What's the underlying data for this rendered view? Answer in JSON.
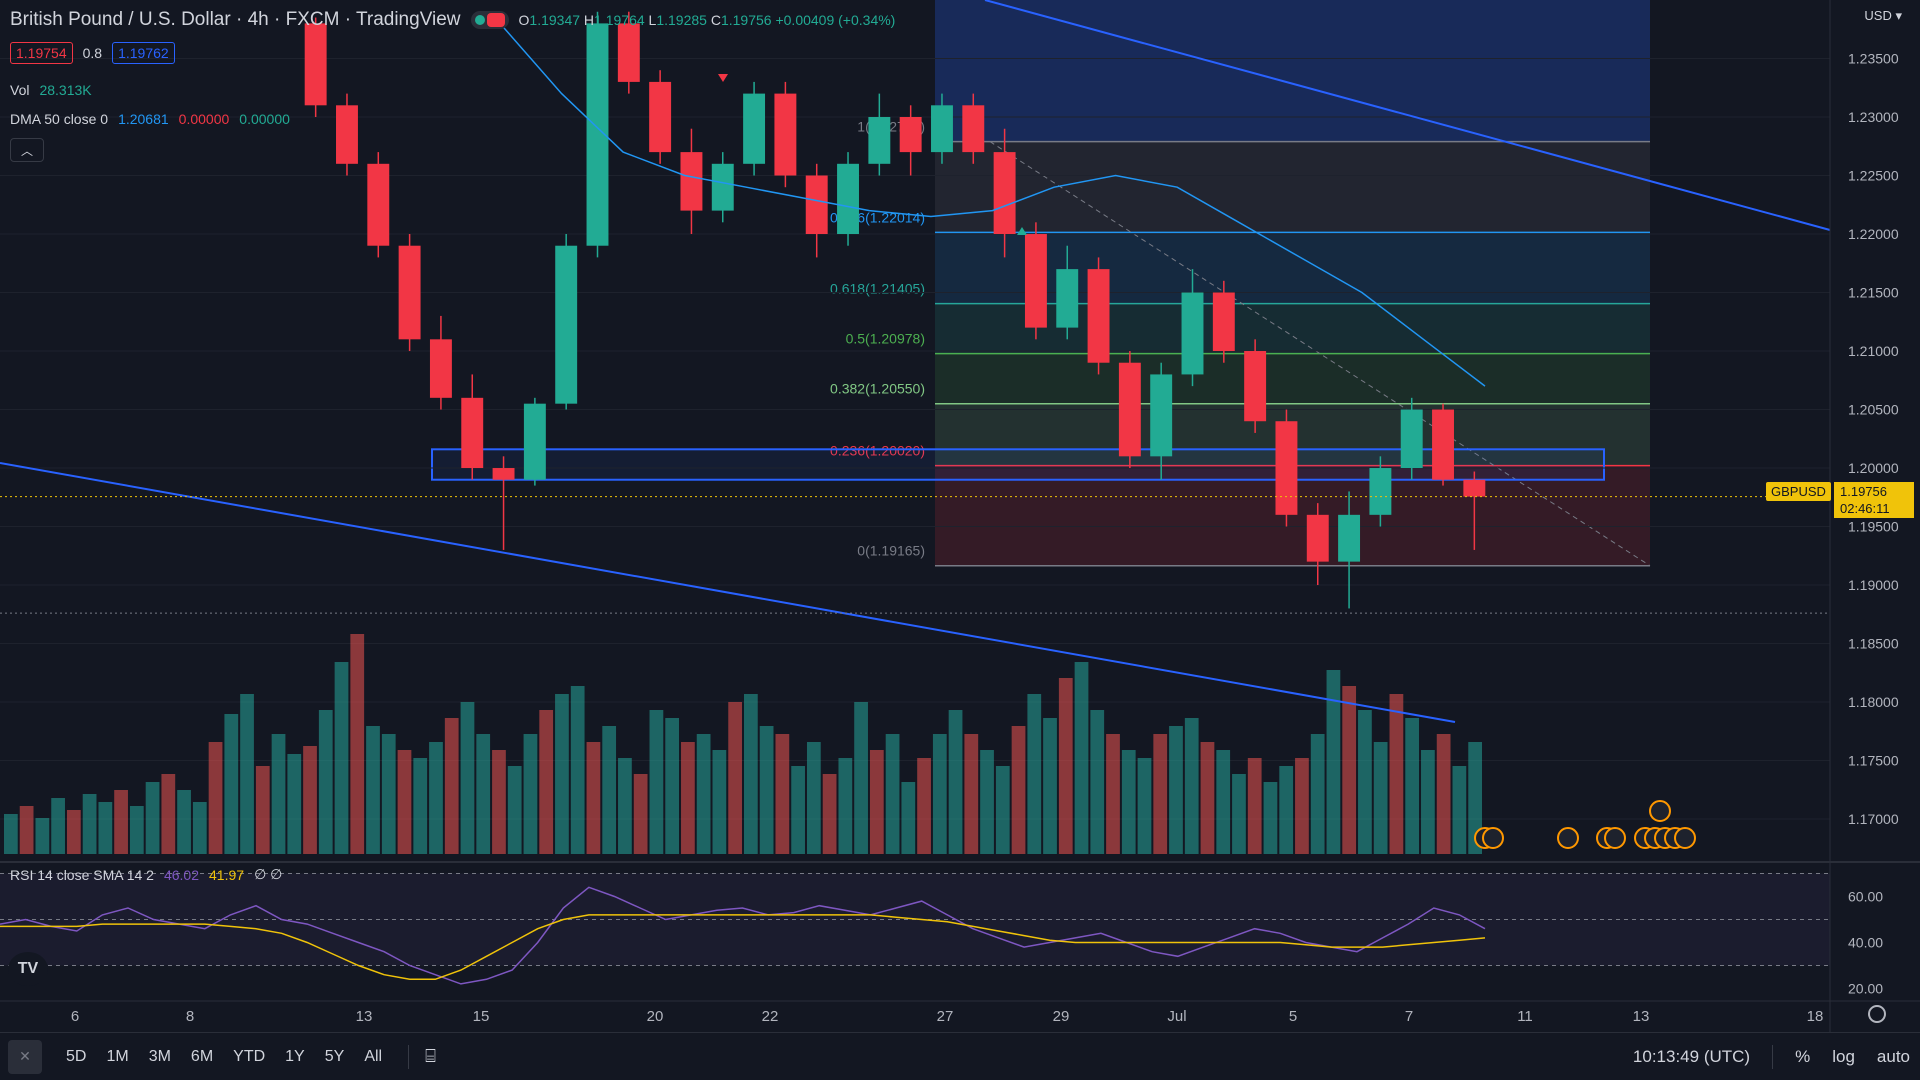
{
  "header": {
    "title": "British Pound / U.S. Dollar · 4h · FXCM · TradingView",
    "ohlc": {
      "open_label": "O",
      "open": "1.19347",
      "high_label": "H",
      "high": "1.19764",
      "low_label": "L",
      "low": "1.19285",
      "close_label": "C",
      "close": "1.19756",
      "change": "+0.00409 (+0.34%)"
    },
    "bid": "1.19754",
    "spread": "0.8",
    "ask": "1.19762"
  },
  "indicators": {
    "vol_label": "Vol",
    "vol_value": "28.313K",
    "dma_label": "DMA 50 close 0",
    "dma_value": "1.20681",
    "dma_v2": "0.00000",
    "dma_v3": "0.00000",
    "rsi_label": "RSI 14 close SMA 14 2",
    "rsi_value": "46.02",
    "rsi_sma": "41.97",
    "rsi_extra": "∅ ∅"
  },
  "price_axis": {
    "currency": "USD",
    "ticks": [
      "1.23500",
      "1.23000",
      "1.22500",
      "1.22000",
      "1.21500",
      "1.21000",
      "1.20500",
      "1.20000",
      "1.19500",
      "1.19000",
      "1.18500",
      "1.18000",
      "1.17500",
      "1.17000"
    ],
    "symbol_label": "GBPUSD",
    "last_price": "1.19756",
    "countdown": "02:46:11"
  },
  "rsi_axis": {
    "ticks": [
      "60.00",
      "40.00",
      "20.00"
    ]
  },
  "time_axis": {
    "ticks": [
      "6",
      "8",
      "13",
      "15",
      "20",
      "22",
      "27",
      "29",
      "Jul",
      "5",
      "7",
      "11",
      "13",
      "18"
    ]
  },
  "fib": {
    "levels": [
      {
        "ratio": 1,
        "label": "1(1.22790)",
        "color": "#787b86"
      },
      {
        "ratio": 0.786,
        "label": "0.786(1.22014)",
        "color": "#2196f3"
      },
      {
        "ratio": 0.618,
        "label": "0.618(1.21405)",
        "color": "#26a69a"
      },
      {
        "ratio": 0.5,
        "label": "0.5(1.20978)",
        "color": "#4caf50"
      },
      {
        "ratio": 0.382,
        "label": "0.382(1.20550)",
        "color": "#81c784"
      },
      {
        "ratio": 0.236,
        "label": "0.236(1.20020)",
        "color": "#f23645"
      },
      {
        "ratio": 0,
        "label": "0(1.19165)",
        "color": "#787b86"
      }
    ]
  },
  "chart_data": {
    "type": "candlestick",
    "symbol": "GBPUSD",
    "interval": "4h",
    "ylim": [
      1.1665,
      1.24
    ],
    "candles_ohlc_sample": [
      [
        1.238,
        1.2385,
        1.23,
        1.231
      ],
      [
        1.231,
        1.232,
        1.225,
        1.226
      ],
      [
        1.226,
        1.227,
        1.218,
        1.219
      ],
      [
        1.219,
        1.22,
        1.21,
        1.211
      ],
      [
        1.211,
        1.213,
        1.205,
        1.206
      ],
      [
        1.206,
        1.208,
        1.199,
        1.2
      ],
      [
        1.2,
        1.201,
        1.193,
        1.199
      ],
      [
        1.199,
        1.206,
        1.1985,
        1.2055
      ],
      [
        1.2055,
        1.22,
        1.205,
        1.219
      ],
      [
        1.219,
        1.239,
        1.218,
        1.238
      ],
      [
        1.238,
        1.239,
        1.232,
        1.233
      ],
      [
        1.233,
        1.234,
        1.226,
        1.227
      ],
      [
        1.227,
        1.229,
        1.22,
        1.222
      ],
      [
        1.222,
        1.227,
        1.221,
        1.226
      ],
      [
        1.226,
        1.233,
        1.225,
        1.232
      ],
      [
        1.232,
        1.233,
        1.224,
        1.225
      ],
      [
        1.225,
        1.226,
        1.218,
        1.22
      ],
      [
        1.22,
        1.227,
        1.219,
        1.226
      ],
      [
        1.226,
        1.232,
        1.225,
        1.23
      ],
      [
        1.23,
        1.231,
        1.225,
        1.227
      ],
      [
        1.227,
        1.232,
        1.226,
        1.231
      ],
      [
        1.231,
        1.232,
        1.226,
        1.227
      ],
      [
        1.227,
        1.229,
        1.218,
        1.22
      ],
      [
        1.22,
        1.221,
        1.211,
        1.212
      ],
      [
        1.212,
        1.219,
        1.211,
        1.217
      ],
      [
        1.217,
        1.218,
        1.208,
        1.209
      ],
      [
        1.209,
        1.21,
        1.2,
        1.201
      ],
      [
        1.201,
        1.209,
        1.199,
        1.208
      ],
      [
        1.208,
        1.217,
        1.207,
        1.215
      ],
      [
        1.215,
        1.216,
        1.209,
        1.21
      ],
      [
        1.21,
        1.211,
        1.203,
        1.204
      ],
      [
        1.204,
        1.205,
        1.195,
        1.196
      ],
      [
        1.196,
        1.197,
        1.19,
        1.192
      ],
      [
        1.192,
        1.198,
        1.188,
        1.196
      ],
      [
        1.196,
        1.201,
        1.195,
        1.2
      ],
      [
        1.2,
        1.206,
        1.199,
        1.205
      ],
      [
        1.205,
        1.2055,
        1.1985,
        1.199
      ],
      [
        1.199,
        1.1997,
        1.193,
        1.19756
      ]
    ],
    "dma50_points": [
      [
        1.238
      ],
      [
        1.232
      ],
      [
        1.227
      ],
      [
        1.225
      ],
      [
        1.224
      ],
      [
        1.223
      ],
      [
        1.222
      ],
      [
        1.2215
      ],
      [
        1.222
      ],
      [
        1.224
      ],
      [
        1.225
      ],
      [
        1.224
      ],
      [
        1.221
      ],
      [
        1.218
      ],
      [
        1.215
      ],
      [
        1.211
      ],
      [
        1.207
      ]
    ],
    "volume_values": [
      10,
      12,
      9,
      14,
      11,
      15,
      13,
      16,
      12,
      18,
      20,
      16,
      13,
      28,
      35,
      40,
      22,
      30,
      25,
      27,
      36,
      48,
      55,
      32,
      30,
      26,
      24,
      28,
      34,
      38,
      30,
      26,
      22,
      30,
      36,
      40,
      42,
      28,
      32,
      24,
      20,
      36,
      34,
      28,
      30,
      26,
      38,
      40,
      32,
      30,
      22,
      28,
      20,
      24,
      38,
      26,
      30,
      18,
      24,
      30,
      36,
      30,
      26,
      22,
      32,
      40,
      34,
      44,
      48,
      36,
      30,
      26,
      24,
      30,
      32,
      34,
      28,
      26,
      20,
      24,
      18,
      22,
      24,
      30,
      46,
      42,
      36,
      28,
      40,
      34,
      26,
      30,
      22,
      28
    ],
    "rsi_ylim": [
      15,
      75
    ],
    "rsi_values": [
      48,
      50,
      47,
      45,
      52,
      55,
      50,
      48,
      46,
      52,
      56,
      50,
      48,
      44,
      40,
      36,
      30,
      26,
      22,
      24,
      28,
      40,
      55,
      64,
      60,
      55,
      50,
      52,
      54,
      55,
      52,
      53,
      56,
      54,
      52,
      55,
      58,
      52,
      46,
      42,
      38,
      40,
      42,
      44,
      40,
      36,
      34,
      38,
      42,
      46,
      44,
      40,
      38,
      36,
      42,
      48,
      55,
      52,
      46
    ],
    "rsi_sma_values": [
      47,
      47,
      47,
      47,
      48,
      48,
      48,
      48,
      48,
      47,
      46,
      44,
      40,
      35,
      30,
      26,
      24,
      24,
      28,
      34,
      40,
      46,
      50,
      52,
      52,
      52,
      52,
      52,
      52,
      52,
      52,
      52,
      52,
      52,
      52,
      51,
      50,
      49,
      47,
      45,
      43,
      41,
      40,
      40,
      40,
      40,
      40,
      40,
      40,
      40,
      40,
      39,
      38,
      38,
      38,
      39,
      40,
      41,
      42
    ]
  },
  "bottom_bar": {
    "ranges": [
      "5D",
      "1M",
      "3M",
      "6M",
      "YTD",
      "1Y",
      "5Y",
      "All"
    ],
    "clock": "10:13:49 (UTC)",
    "percent": "%",
    "log": "log",
    "auto": "auto"
  },
  "colors": {
    "up": "#26a69a",
    "down": "#ef5350",
    "up_candle": "#22ab94",
    "down_candle": "#f23645",
    "dma": "#2196f3",
    "trendline": "#2962ff",
    "rsi": "#7e57c2",
    "rsi_sma": "#f0c30a"
  }
}
